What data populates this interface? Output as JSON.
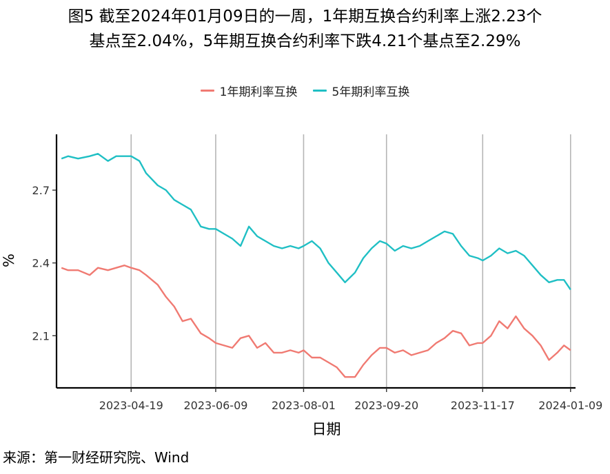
{
  "header": {
    "title_line1": "图5 截至2024年01月09日的一周，1年期互换合约利率上涨2.23个",
    "title_line2": "基点至2.04%，5年期互换合约利率下跌4.21个基点至2.29%"
  },
  "source_text": "来源：第一财经研究院、Wind",
  "chart_data": {
    "type": "line",
    "xlabel": "日期",
    "ylabel": "%",
    "ylim": [
      1.885,
      2.93
    ],
    "yticks": [
      2.1,
      2.4,
      2.7
    ],
    "ytick_labels": [
      "2.1",
      "2.4",
      "2.7"
    ],
    "xlim": [
      "2023-03-05",
      "2024-01-12"
    ],
    "xticks": [
      "2023-04-19",
      "2023-06-09",
      "2023-08-01",
      "2023-09-20",
      "2023-11-17",
      "2024-01-09"
    ],
    "grid": "vertical only",
    "legend_position": "top",
    "series": [
      {
        "name": "1年期利率互换",
        "color": "#F07A72",
        "points": [
          [
            "2023-03-08",
            2.38
          ],
          [
            "2023-03-12",
            2.37
          ],
          [
            "2023-03-18",
            2.37
          ],
          [
            "2023-03-25",
            2.35
          ],
          [
            "2023-03-30",
            2.38
          ],
          [
            "2023-04-05",
            2.37
          ],
          [
            "2023-04-10",
            2.38
          ],
          [
            "2023-04-15",
            2.39
          ],
          [
            "2023-04-19",
            2.38
          ],
          [
            "2023-04-24",
            2.37
          ],
          [
            "2023-04-28",
            2.35
          ],
          [
            "2023-05-05",
            2.31
          ],
          [
            "2023-05-10",
            2.26
          ],
          [
            "2023-05-15",
            2.22
          ],
          [
            "2023-05-20",
            2.16
          ],
          [
            "2023-05-25",
            2.17
          ],
          [
            "2023-05-31",
            2.11
          ],
          [
            "2023-06-05",
            2.09
          ],
          [
            "2023-06-09",
            2.07
          ],
          [
            "2023-06-14",
            2.06
          ],
          [
            "2023-06-19",
            2.05
          ],
          [
            "2023-06-24",
            2.09
          ],
          [
            "2023-06-29",
            2.1
          ],
          [
            "2023-07-04",
            2.05
          ],
          [
            "2023-07-09",
            2.07
          ],
          [
            "2023-07-14",
            2.03
          ],
          [
            "2023-07-19",
            2.03
          ],
          [
            "2023-07-24",
            2.04
          ],
          [
            "2023-07-29",
            2.03
          ],
          [
            "2023-08-01",
            2.04
          ],
          [
            "2023-08-06",
            2.01
          ],
          [
            "2023-08-11",
            2.01
          ],
          [
            "2023-08-16",
            1.99
          ],
          [
            "2023-08-21",
            1.97
          ],
          [
            "2023-08-26",
            1.93
          ],
          [
            "2023-09-01",
            1.93
          ],
          [
            "2023-09-06",
            1.98
          ],
          [
            "2023-09-11",
            2.02
          ],
          [
            "2023-09-16",
            2.05
          ],
          [
            "2023-09-20",
            2.05
          ],
          [
            "2023-09-25",
            2.03
          ],
          [
            "2023-09-30",
            2.04
          ],
          [
            "2023-10-05",
            2.02
          ],
          [
            "2023-10-10",
            2.03
          ],
          [
            "2023-10-15",
            2.04
          ],
          [
            "2023-10-20",
            2.07
          ],
          [
            "2023-10-25",
            2.09
          ],
          [
            "2023-10-30",
            2.12
          ],
          [
            "2023-11-04",
            2.11
          ],
          [
            "2023-11-09",
            2.06
          ],
          [
            "2023-11-14",
            2.07
          ],
          [
            "2023-11-17",
            2.07
          ],
          [
            "2023-11-22",
            2.1
          ],
          [
            "2023-11-27",
            2.16
          ],
          [
            "2023-12-02",
            2.13
          ],
          [
            "2023-12-07",
            2.18
          ],
          [
            "2023-12-12",
            2.13
          ],
          [
            "2023-12-17",
            2.1
          ],
          [
            "2023-12-22",
            2.06
          ],
          [
            "2023-12-27",
            2.0
          ],
          [
            "2024-01-01",
            2.03
          ],
          [
            "2024-01-05",
            2.06
          ],
          [
            "2024-01-09",
            2.04
          ]
        ]
      },
      {
        "name": "5年期利率互换",
        "color": "#1FBFC4",
        "points": [
          [
            "2023-03-08",
            2.83
          ],
          [
            "2023-03-12",
            2.84
          ],
          [
            "2023-03-18",
            2.83
          ],
          [
            "2023-03-25",
            2.84
          ],
          [
            "2023-03-30",
            2.85
          ],
          [
            "2023-04-05",
            2.82
          ],
          [
            "2023-04-10",
            2.84
          ],
          [
            "2023-04-15",
            2.84
          ],
          [
            "2023-04-19",
            2.84
          ],
          [
            "2023-04-24",
            2.82
          ],
          [
            "2023-04-28",
            2.77
          ],
          [
            "2023-05-05",
            2.72
          ],
          [
            "2023-05-10",
            2.7
          ],
          [
            "2023-05-15",
            2.66
          ],
          [
            "2023-05-20",
            2.64
          ],
          [
            "2023-05-25",
            2.62
          ],
          [
            "2023-05-31",
            2.55
          ],
          [
            "2023-06-05",
            2.54
          ],
          [
            "2023-06-09",
            2.54
          ],
          [
            "2023-06-14",
            2.52
          ],
          [
            "2023-06-19",
            2.5
          ],
          [
            "2023-06-24",
            2.47
          ],
          [
            "2023-06-29",
            2.55
          ],
          [
            "2023-07-04",
            2.51
          ],
          [
            "2023-07-09",
            2.49
          ],
          [
            "2023-07-14",
            2.47
          ],
          [
            "2023-07-19",
            2.46
          ],
          [
            "2023-07-24",
            2.47
          ],
          [
            "2023-07-29",
            2.46
          ],
          [
            "2023-08-01",
            2.47
          ],
          [
            "2023-08-06",
            2.49
          ],
          [
            "2023-08-11",
            2.46
          ],
          [
            "2023-08-16",
            2.4
          ],
          [
            "2023-08-21",
            2.36
          ],
          [
            "2023-08-26",
            2.32
          ],
          [
            "2023-09-01",
            2.36
          ],
          [
            "2023-09-06",
            2.42
          ],
          [
            "2023-09-11",
            2.46
          ],
          [
            "2023-09-16",
            2.49
          ],
          [
            "2023-09-20",
            2.48
          ],
          [
            "2023-09-25",
            2.45
          ],
          [
            "2023-09-30",
            2.47
          ],
          [
            "2023-10-05",
            2.46
          ],
          [
            "2023-10-10",
            2.47
          ],
          [
            "2023-10-15",
            2.49
          ],
          [
            "2023-10-20",
            2.51
          ],
          [
            "2023-10-25",
            2.53
          ],
          [
            "2023-10-30",
            2.52
          ],
          [
            "2023-11-04",
            2.47
          ],
          [
            "2023-11-09",
            2.43
          ],
          [
            "2023-11-14",
            2.42
          ],
          [
            "2023-11-17",
            2.41
          ],
          [
            "2023-11-22",
            2.43
          ],
          [
            "2023-11-27",
            2.46
          ],
          [
            "2023-12-02",
            2.44
          ],
          [
            "2023-12-07",
            2.45
          ],
          [
            "2023-12-12",
            2.43
          ],
          [
            "2023-12-17",
            2.39
          ],
          [
            "2023-12-22",
            2.35
          ],
          [
            "2023-12-27",
            2.32
          ],
          [
            "2024-01-01",
            2.33
          ],
          [
            "2024-01-05",
            2.33
          ],
          [
            "2024-01-09",
            2.29
          ]
        ]
      }
    ]
  }
}
